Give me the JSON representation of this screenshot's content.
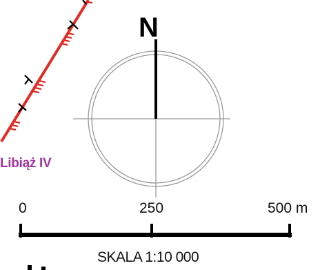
{
  "map": {
    "place_label": "Libiąż IV",
    "north_label": "N",
    "scale_ticks": [
      "0",
      "250",
      "500 m"
    ],
    "scale_text": "SKALA 1:10 000",
    "colors": {
      "boundary_line": "#e12b23",
      "place_label": "#a3359e",
      "compass": "#999999",
      "ink": "#000000"
    },
    "icons": [
      "north-arrow-icon",
      "compass-rose-icon",
      "boundary-line"
    ]
  }
}
